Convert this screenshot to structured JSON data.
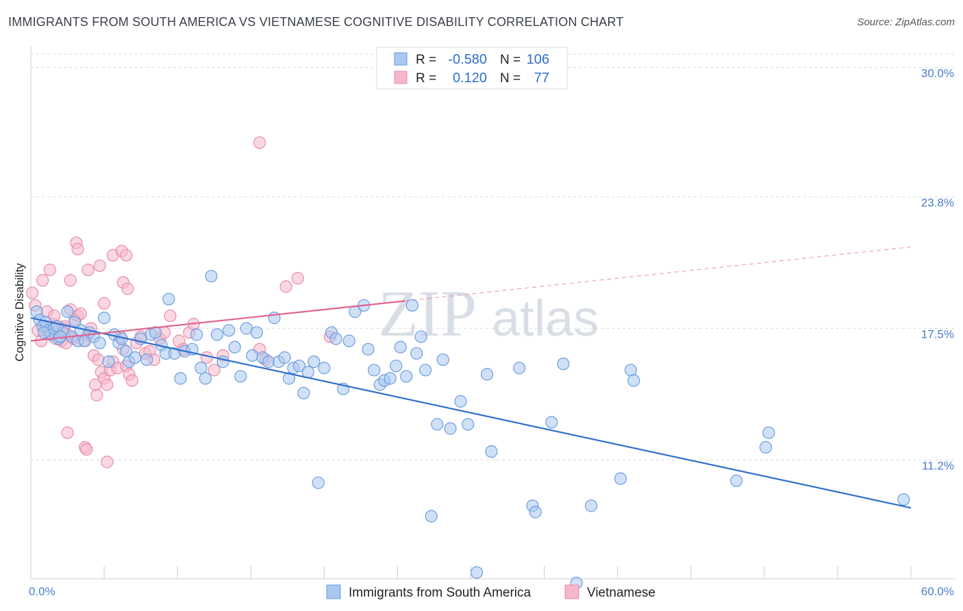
{
  "title": "IMMIGRANTS FROM SOUTH AMERICA VS VIETNAMESE COGNITIVE DISABILITY CORRELATION CHART",
  "source": "Source: ZipAtlas.com",
  "watermark": {
    "zip": "ZIP",
    "atlas": "atlas"
  },
  "legend": {
    "rows": [
      {
        "r_label": "R =",
        "r_value": "-0.580",
        "n_label": "N =",
        "n_value": "106"
      },
      {
        "r_label": "R =",
        "r_value": "0.120",
        "n_label": "N =",
        "n_value": "77"
      }
    ]
  },
  "bottom_legend": {
    "items": [
      {
        "label": "Immigrants from South America"
      },
      {
        "label": "Vietnamese"
      }
    ]
  },
  "colors": {
    "blue_fill": "#a9c8f0",
    "blue_stroke": "#6b9de0",
    "blue_line": "#2f6fce",
    "pink_fill": "#f5b8ca",
    "pink_stroke": "#e98aa8",
    "pink_line": "#e0648d",
    "grid": "#d7dbe0",
    "tick_text": "#4a7ec9"
  },
  "chart_data": {
    "type": "scatter",
    "xlabel": "",
    "ylabel": "Cognitive Disability",
    "xlim": [
      0,
      60
    ],
    "ylim": [
      5.5,
      31
    ],
    "x_tick_labels": [
      {
        "value": 0,
        "label": "0.0%"
      },
      {
        "value": 60,
        "label": "60.0%"
      }
    ],
    "y_tick_labels": [
      {
        "value": 30.0,
        "label": "30.0%"
      },
      {
        "value": 23.8,
        "label": "23.8%"
      },
      {
        "value": 17.5,
        "label": "17.5%"
      },
      {
        "value": 11.2,
        "label": "11.2%"
      }
    ],
    "grid": true,
    "legend_position": "top-center",
    "series": [
      {
        "name": "Immigrants from South America",
        "color": "#a9c8f0",
        "trend": {
          "x": [
            0,
            60
          ],
          "y": [
            18.0,
            8.9
          ],
          "dashed_extension": false
        },
        "points": [
          [
            0.4,
            18.3
          ],
          [
            0.6,
            17.9
          ],
          [
            0.8,
            17.6
          ],
          [
            1.0,
            17.8
          ],
          [
            1.2,
            17.4
          ],
          [
            1.4,
            17.2
          ],
          [
            1.6,
            17.5
          ],
          [
            1.9,
            17.0
          ],
          [
            2.2,
            17.3
          ],
          [
            2.5,
            18.3
          ],
          [
            2.8,
            17.1
          ],
          [
            3.2,
            16.9
          ],
          [
            3.4,
            17.4
          ],
          [
            3.7,
            16.9
          ],
          [
            4.0,
            17.3
          ],
          [
            4.3,
            17.1
          ],
          [
            4.7,
            16.8
          ],
          [
            5.0,
            18.0
          ],
          [
            5.3,
            15.9
          ],
          [
            5.7,
            17.2
          ],
          [
            6.0,
            16.8
          ],
          [
            6.2,
            17.0
          ],
          [
            6.5,
            16.4
          ],
          [
            6.7,
            15.9
          ],
          [
            7.1,
            16.1
          ],
          [
            7.5,
            17.0
          ],
          [
            7.9,
            16.0
          ],
          [
            8.2,
            17.2
          ],
          [
            8.5,
            17.3
          ],
          [
            8.9,
            16.7
          ],
          [
            9.2,
            16.3
          ],
          [
            9.4,
            18.9
          ],
          [
            9.8,
            16.3
          ],
          [
            10.2,
            15.1
          ],
          [
            10.5,
            16.4
          ],
          [
            11.0,
            16.5
          ],
          [
            11.3,
            17.2
          ],
          [
            11.6,
            15.6
          ],
          [
            11.9,
            15.1
          ],
          [
            12.3,
            20.0
          ],
          [
            12.7,
            17.2
          ],
          [
            13.1,
            15.9
          ],
          [
            13.5,
            17.4
          ],
          [
            13.9,
            16.6
          ],
          [
            14.3,
            15.2
          ],
          [
            14.7,
            17.5
          ],
          [
            15.1,
            16.2
          ],
          [
            15.4,
            17.3
          ],
          [
            15.8,
            16.1
          ],
          [
            16.2,
            15.9
          ],
          [
            16.6,
            18.0
          ],
          [
            16.9,
            15.9
          ],
          [
            17.3,
            16.1
          ],
          [
            17.6,
            15.1
          ],
          [
            17.9,
            15.6
          ],
          [
            18.3,
            15.7
          ],
          [
            18.6,
            14.4
          ],
          [
            18.9,
            15.4
          ],
          [
            19.3,
            15.9
          ],
          [
            19.6,
            10.1
          ],
          [
            20.0,
            15.6
          ],
          [
            20.5,
            17.3
          ],
          [
            20.8,
            17.0
          ],
          [
            21.3,
            14.6
          ],
          [
            21.7,
            16.9
          ],
          [
            22.1,
            18.3
          ],
          [
            22.7,
            18.6
          ],
          [
            23.0,
            16.5
          ],
          [
            23.4,
            15.5
          ],
          [
            23.8,
            14.8
          ],
          [
            24.1,
            15.0
          ],
          [
            24.5,
            15.1
          ],
          [
            24.9,
            15.7
          ],
          [
            25.2,
            16.6
          ],
          [
            25.6,
            15.2
          ],
          [
            26.0,
            18.6
          ],
          [
            26.3,
            16.3
          ],
          [
            26.6,
            17.1
          ],
          [
            26.9,
            15.5
          ],
          [
            27.3,
            8.5
          ],
          [
            27.7,
            12.9
          ],
          [
            28.1,
            16.0
          ],
          [
            28.6,
            12.7
          ],
          [
            29.3,
            14.0
          ],
          [
            29.8,
            12.9
          ],
          [
            30.4,
            5.8
          ],
          [
            31.1,
            15.3
          ],
          [
            31.4,
            11.6
          ],
          [
            33.3,
            15.6
          ],
          [
            34.2,
            9.0
          ],
          [
            34.4,
            8.7
          ],
          [
            35.5,
            13.0
          ],
          [
            36.3,
            15.8
          ],
          [
            37.2,
            5.3
          ],
          [
            38.2,
            9.0
          ],
          [
            40.2,
            10.3
          ],
          [
            40.9,
            15.5
          ],
          [
            41.1,
            15.0
          ],
          [
            48.1,
            10.2
          ],
          [
            50.1,
            11.8
          ],
          [
            50.3,
            12.5
          ],
          [
            59.5,
            9.3
          ],
          [
            0.9,
            17.3
          ],
          [
            1.8,
            17.6
          ],
          [
            2.0,
            17.1
          ],
          [
            3.0,
            17.8
          ]
        ]
      },
      {
        "name": "Vietnamese",
        "color": "#f5b8ca",
        "trend": {
          "x": [
            0,
            60
          ],
          "y": [
            16.9,
            21.4
          ],
          "solid_until_x": 25.5
        },
        "points": [
          [
            0.1,
            19.2
          ],
          [
            0.3,
            18.6
          ],
          [
            0.5,
            17.4
          ],
          [
            0.7,
            16.9
          ],
          [
            0.8,
            19.8
          ],
          [
            1.0,
            17.6
          ],
          [
            1.1,
            18.3
          ],
          [
            1.3,
            17.2
          ],
          [
            1.5,
            17.7
          ],
          [
            1.6,
            18.1
          ],
          [
            1.7,
            17.0
          ],
          [
            1.9,
            17.4
          ],
          [
            2.1,
            16.9
          ],
          [
            2.3,
            17.6
          ],
          [
            2.5,
            17.2
          ],
          [
            2.7,
            18.4
          ],
          [
            2.9,
            17.0
          ],
          [
            3.0,
            17.9
          ],
          [
            3.2,
            18.1
          ],
          [
            3.4,
            18.2
          ],
          [
            3.6,
            16.9
          ],
          [
            3.9,
            17.2
          ],
          [
            4.1,
            17.5
          ],
          [
            4.3,
            16.2
          ],
          [
            4.6,
            16.0
          ],
          [
            4.8,
            15.4
          ],
          [
            5.0,
            15.1
          ],
          [
            5.2,
            14.8
          ],
          [
            5.4,
            15.5
          ],
          [
            5.6,
            15.9
          ],
          [
            5.9,
            15.6
          ],
          [
            6.1,
            17.1
          ],
          [
            6.3,
            16.5
          ],
          [
            6.5,
            15.7
          ],
          [
            6.7,
            15.3
          ],
          [
            6.9,
            15.0
          ],
          [
            7.2,
            16.8
          ],
          [
            7.5,
            17.1
          ],
          [
            7.8,
            16.3
          ],
          [
            8.1,
            16.4
          ],
          [
            8.4,
            16.0
          ],
          [
            8.8,
            17.0
          ],
          [
            9.1,
            17.3
          ],
          [
            9.5,
            18.1
          ],
          [
            10.1,
            16.9
          ],
          [
            10.4,
            16.5
          ],
          [
            10.8,
            17.3
          ],
          [
            11.1,
            17.7
          ],
          [
            12.0,
            16.1
          ],
          [
            12.5,
            15.5
          ],
          [
            13.1,
            16.2
          ],
          [
            15.6,
            16.5
          ],
          [
            16.0,
            16.0
          ],
          [
            17.4,
            19.5
          ],
          [
            18.2,
            19.9
          ],
          [
            20.4,
            17.1
          ],
          [
            15.6,
            26.4
          ],
          [
            3.1,
            21.6
          ],
          [
            3.2,
            21.3
          ],
          [
            4.7,
            20.5
          ],
          [
            5.6,
            21.0
          ],
          [
            6.2,
            21.2
          ],
          [
            6.5,
            21.0
          ],
          [
            6.3,
            19.7
          ],
          [
            1.3,
            20.3
          ],
          [
            2.7,
            19.8
          ],
          [
            3.9,
            20.3
          ],
          [
            5.0,
            18.7
          ],
          [
            6.6,
            19.4
          ],
          [
            2.5,
            12.5
          ],
          [
            3.7,
            11.8
          ],
          [
            3.8,
            11.7
          ],
          [
            5.2,
            11.1
          ],
          [
            2.2,
            17.5
          ],
          [
            2.4,
            16.8
          ],
          [
            4.4,
            14.8
          ],
          [
            4.5,
            14.3
          ]
        ]
      }
    ]
  }
}
